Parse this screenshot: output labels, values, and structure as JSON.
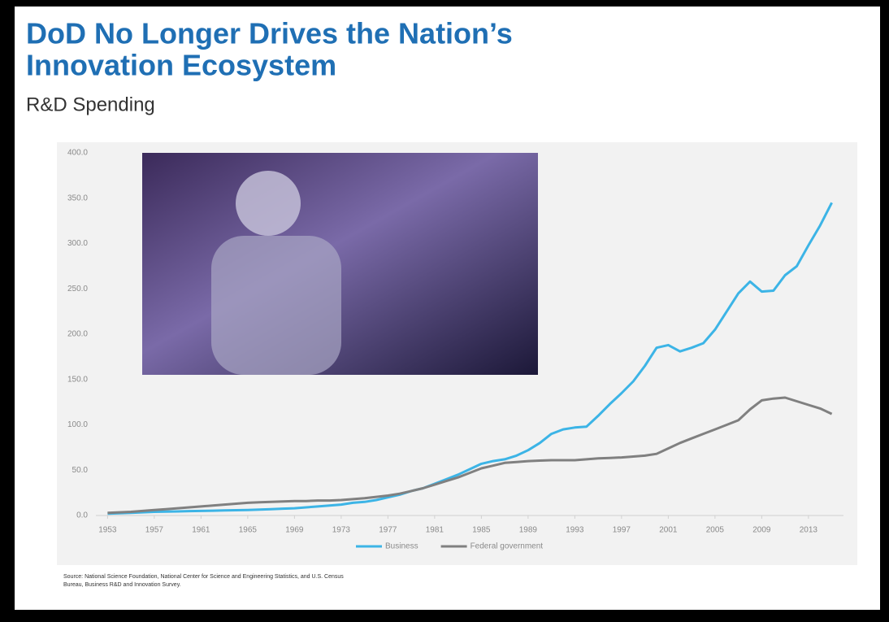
{
  "chart_data": {
    "type": "line",
    "title": [
      "DoD No Longer Drives the Nation’s",
      "Innovation Ecosystem"
    ],
    "subtitle": "R&D Spending",
    "source": [
      "Source: National Science Foundation, National Center for Science and Engineering Statistics, and U.S. Census",
      "Bureau, Business R&D and Innovation Survey."
    ],
    "x": [
      1953,
      1954,
      1955,
      1956,
      1957,
      1958,
      1959,
      1960,
      1961,
      1962,
      1963,
      1964,
      1965,
      1966,
      1967,
      1968,
      1969,
      1970,
      1971,
      1972,
      1973,
      1974,
      1975,
      1976,
      1977,
      1978,
      1979,
      1980,
      1981,
      1982,
      1983,
      1984,
      1985,
      1986,
      1987,
      1988,
      1989,
      1990,
      1991,
      1992,
      1993,
      1994,
      1995,
      1996,
      1997,
      1998,
      1999,
      2000,
      2001,
      2002,
      2003,
      2004,
      2005,
      2006,
      2007,
      2008,
      2009,
      2010,
      2011,
      2012,
      2013,
      2014,
      2015
    ],
    "series": [
      {
        "name": "Business",
        "color": "#3cb4e6",
        "values": [
          2,
          2.5,
          3,
          3.5,
          4,
          4.2,
          4.5,
          4.8,
          5,
          5.3,
          5.6,
          5.8,
          6,
          6.5,
          7,
          7.5,
          8,
          9,
          10,
          11,
          12,
          14,
          15,
          17,
          20,
          23,
          27,
          30,
          35,
          40,
          45,
          51,
          57,
          60,
          62,
          66,
          72,
          80,
          90,
          95,
          97,
          98,
          110,
          123,
          135,
          148,
          165,
          185,
          188,
          181,
          185,
          190,
          205,
          225,
          245,
          258,
          247,
          248,
          265,
          275,
          298,
          320,
          345
        ]
      },
      {
        "name": "Federal government",
        "color": "#808080",
        "values": [
          3,
          3.5,
          4,
          5,
          6,
          7,
          8,
          9,
          10,
          11,
          12,
          13,
          14,
          14.5,
          15,
          15.5,
          16,
          16,
          16.5,
          16.5,
          17,
          18,
          19,
          20.5,
          22,
          24,
          27,
          30,
          34,
          38,
          42,
          47,
          52,
          55,
          58,
          59,
          60,
          60.5,
          61,
          61,
          61,
          62,
          63,
          63.5,
          64,
          65,
          66,
          68,
          74,
          80,
          85,
          90,
          95,
          100,
          105,
          117,
          127,
          129,
          130,
          126,
          122,
          118,
          112
        ]
      }
    ],
    "xlim": [
      1952,
      2016
    ],
    "xticks": [
      1953,
      1957,
      1961,
      1965,
      1969,
      1973,
      1977,
      1981,
      1985,
      1989,
      1993,
      1997,
      2001,
      2005,
      2009,
      2013
    ],
    "ylim": [
      0,
      400
    ],
    "yticks": [
      {
        "value": 0,
        "label": "0.0"
      },
      {
        "value": 50,
        "label": "50.0"
      },
      {
        "value": 100,
        "label": "100.0"
      },
      {
        "value": 150,
        "label": "150.0"
      },
      {
        "value": 200,
        "label": "200.0"
      },
      {
        "value": 250,
        "label": "250.0"
      },
      {
        "value": 300,
        "label": "300.0"
      },
      {
        "value": 350,
        "label": "350.0"
      },
      {
        "value": 400,
        "label": "400.0"
      }
    ]
  }
}
